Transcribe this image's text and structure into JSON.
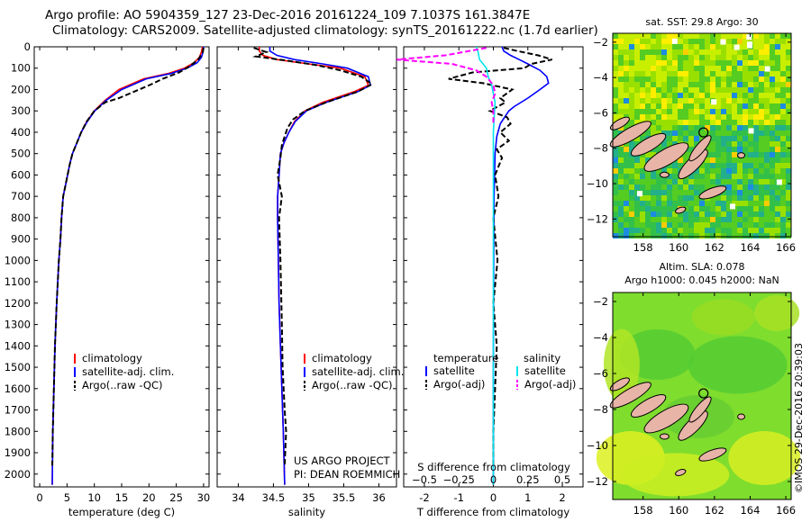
{
  "header": {
    "line1": "Argo profile: AO 5904359_127 23-Dec-2016 20161224_109 7.1037S 161.3847E",
    "line2": "Climatology: CARS2009. Satellite-adjusted climatology: synTS_20161222.nc (1.7d earlier)"
  },
  "credit": "©IMOS 29-Dec-2016 20:39:03",
  "colors": {
    "climatology": "#ff0000",
    "satellite": "#0000ff",
    "argo": "#000000",
    "salinity_satellite": "#00e5ee",
    "salinity_argo": "#ff00ff",
    "land": "#e8b4a8",
    "sst_bg": "#33cc33",
    "sla_bg": "#7fdd2e"
  },
  "chart_data": [
    {
      "type": "line",
      "id": "temperature",
      "xlabel": "temperature (deg C)",
      "xlim": [
        -1,
        31
      ],
      "ylim": [
        2060,
        0
      ],
      "xticks": [
        0,
        5,
        10,
        15,
        20,
        25,
        30
      ],
      "yticks": [
        0,
        100,
        200,
        300,
        400,
        500,
        600,
        700,
        800,
        900,
        1000,
        1100,
        1200,
        1300,
        1400,
        1500,
        1600,
        1700,
        1800,
        1900,
        2000
      ],
      "legend": [
        "climatology",
        "satellite-adj. clim.",
        "Argo(..raw -QC)"
      ],
      "series": [
        {
          "name": "climatology",
          "style": "solid",
          "x": [
            29.8,
            29.6,
            29.2,
            28.2,
            26.5,
            23.5,
            19.0,
            14.5,
            12.0,
            10.0,
            8.6,
            7.6,
            6.8,
            6.0,
            5.5,
            5.1,
            4.7,
            4.3,
            4.0,
            3.8,
            3.5,
            3.1,
            2.8,
            2.6,
            2.4,
            2.3
          ],
          "y": [
            0,
            25,
            50,
            75,
            100,
            125,
            150,
            200,
            250,
            300,
            350,
            400,
            450,
            500,
            550,
            600,
            650,
            700,
            800,
            900,
            1000,
            1200,
            1400,
            1600,
            1800,
            2050
          ]
        },
        {
          "name": "satellite-adj. clim.",
          "style": "solid",
          "x": [
            30.0,
            29.9,
            29.6,
            28.8,
            27.0,
            24.0,
            19.5,
            15.0,
            12.2,
            10.1,
            8.7,
            7.6,
            6.8,
            6.0,
            5.5,
            5.1,
            4.7,
            4.3,
            4.0,
            3.8,
            3.5,
            3.1,
            2.8,
            2.6,
            2.4,
            2.3
          ],
          "y": [
            0,
            25,
            50,
            75,
            100,
            125,
            150,
            200,
            250,
            300,
            350,
            400,
            450,
            500,
            550,
            600,
            650,
            700,
            800,
            900,
            1000,
            1200,
            1400,
            1600,
            1800,
            2050
          ]
        },
        {
          "name": "Argo(..raw -QC)",
          "style": "dashed",
          "x": [
            30.0,
            29.8,
            29.0,
            27.5,
            25.5,
            22.5,
            20.5,
            18.2,
            14.5,
            12.0,
            10.0,
            8.6,
            7.6,
            6.8,
            6.0,
            5.5,
            5.1,
            4.7,
            4.3,
            4.0,
            3.8,
            3.5,
            3.1,
            2.8,
            2.6,
            2.4,
            2.3
          ],
          "y": [
            5,
            30,
            60,
            90,
            120,
            150,
            175,
            200,
            240,
            260,
            300,
            350,
            400,
            450,
            500,
            550,
            600,
            650,
            700,
            800,
            900,
            1000,
            1200,
            1400,
            1600,
            1800,
            1960
          ]
        }
      ]
    },
    {
      "type": "line",
      "id": "salinity",
      "xlabel": "salinity",
      "xlim": [
        33.7,
        36.25
      ],
      "ylim": [
        2060,
        0
      ],
      "xticks": [
        34,
        34.5,
        35,
        35.5,
        36
      ],
      "yticks": [
        0,
        100,
        200,
        300,
        400,
        500,
        600,
        700,
        800,
        900,
        1000,
        1100,
        1200,
        1300,
        1400,
        1500,
        1600,
        1700,
        1800,
        1900,
        2000
      ],
      "legend": [
        "climatology",
        "satellite-adj. clim.",
        "Argo(..raw -QC)"
      ],
      "annotation_line1": "US ARGO PROJECT",
      "annotation_line2": "PI: DEAN ROEMMICH",
      "series": [
        {
          "name": "climatology",
          "style": "solid",
          "x": [
            34.3,
            34.3,
            34.35,
            34.55,
            35.0,
            35.45,
            35.8,
            35.85,
            35.65,
            35.2,
            34.95,
            34.8,
            34.72,
            34.65,
            34.6,
            34.58,
            34.56,
            34.56,
            34.57,
            34.58,
            34.6,
            34.62,
            34.64,
            34.66
          ],
          "y": [
            0,
            20,
            40,
            60,
            80,
            100,
            140,
            180,
            210,
            260,
            300,
            350,
            400,
            450,
            500,
            600,
            700,
            800,
            1000,
            1200,
            1400,
            1600,
            1800,
            2050
          ]
        },
        {
          "name": "satellite-adj. clim.",
          "style": "solid",
          "x": [
            34.45,
            34.45,
            34.55,
            34.8,
            35.2,
            35.55,
            35.85,
            35.88,
            35.7,
            35.25,
            34.97,
            34.81,
            34.72,
            34.65,
            34.6,
            34.58,
            34.56,
            34.56,
            34.57,
            34.58,
            34.6,
            34.62,
            34.64,
            34.66
          ],
          "y": [
            0,
            20,
            40,
            60,
            80,
            100,
            140,
            180,
            210,
            260,
            300,
            350,
            400,
            450,
            500,
            600,
            700,
            800,
            1000,
            1200,
            1400,
            1600,
            1800,
            2050
          ]
        },
        {
          "name": "Argo(..raw -QC)",
          "style": "dashed",
          "x": [
            34.22,
            34.4,
            34.25,
            34.7,
            35.1,
            35.45,
            35.75,
            35.9,
            35.7,
            35.25,
            34.95,
            34.78,
            34.7,
            34.66,
            34.62,
            34.6,
            34.56,
            34.62,
            34.58,
            34.6,
            34.62,
            34.63,
            34.66,
            34.68,
            34.66
          ],
          "y": [
            5,
            25,
            45,
            65,
            85,
            110,
            140,
            175,
            210,
            260,
            300,
            340,
            380,
            420,
            460,
            520,
            600,
            700,
            800,
            1000,
            1300,
            1500,
            1700,
            1800,
            1960
          ]
        }
      ]
    },
    {
      "type": "line",
      "id": "differences",
      "xlabel": "T difference from climatology",
      "x2label": "S difference from climatology",
      "xlim": [
        -2.6,
        2.6
      ],
      "ylim": [
        2060,
        0
      ],
      "xticks": [
        -2,
        -1,
        0,
        1,
        2
      ],
      "x2ticks": [
        -0.5,
        -0.25,
        0,
        0.25,
        0.5
      ],
      "x2tick_labels": [
        "−0.5",
        "−0.25",
        "0",
        "0.25",
        "0.5"
      ],
      "yticks": [
        0,
        100,
        200,
        300,
        400,
        500,
        600,
        700,
        800,
        900,
        1000,
        1100,
        1200,
        1300,
        1400,
        1500,
        1600,
        1700,
        1800,
        1900,
        2000
      ],
      "legend_titles": [
        "temperature",
        "salinity"
      ],
      "legend": [
        "satellite",
        "Argo(-adj)",
        "satellite",
        "Argo(-adj)"
      ],
      "series": [
        {
          "name": "temperature satellite",
          "style": "solid",
          "color": "#0000ff",
          "x": [
            0.25,
            0.3,
            0.5,
            0.75,
            1.0,
            1.35,
            1.55,
            1.6,
            1.35,
            1.0,
            0.6,
            0.45,
            0.2,
            0.1,
            0.05,
            0.02,
            0.01,
            0.0,
            0.0
          ],
          "y": [
            0,
            20,
            40,
            60,
            80,
            110,
            140,
            170,
            200,
            240,
            280,
            300,
            360,
            420,
            500,
            700,
            1000,
            1500,
            2050
          ]
        },
        {
          "name": "temperature Argo(-adj)",
          "style": "dashed",
          "color": "#000000",
          "x": [
            0.3,
            0.7,
            1.3,
            1.7,
            1.1,
            0.9,
            -0.6,
            -1.3,
            -0.3,
            0.55,
            0.2,
            0.35,
            -0.1,
            0.4,
            0.5,
            0.2,
            0.45,
            0.1,
            0.25,
            0.05,
            0.15,
            0.0,
            0.12,
            0.0,
            0.1,
            0.0,
            0.0
          ],
          "y": [
            5,
            20,
            40,
            60,
            80,
            100,
            120,
            150,
            170,
            200,
            240,
            260,
            300,
            330,
            360,
            400,
            440,
            480,
            520,
            600,
            700,
            800,
            1000,
            1200,
            1400,
            1800,
            1960
          ]
        },
        {
          "name": "salinity satellite",
          "style": "solid",
          "color": "#00e5ee",
          "x": [
            -0.5,
            -0.45,
            -0.4,
            -0.2,
            -0.15,
            -0.05,
            0.05,
            0.0,
            0.0,
            0.0
          ],
          "y": [
            0,
            20,
            60,
            100,
            140,
            180,
            260,
            400,
            1000,
            2050
          ]
        },
        {
          "name": "salinity Argo(-adj)",
          "style": "dashed",
          "color": "#ff00ff",
          "x": [
            -0.2,
            -1.4,
            -2.8,
            -1.2,
            -0.5,
            -0.2,
            0.0,
            0.05,
            -0.05,
            0.0,
            0.0
          ],
          "y": [
            5,
            40,
            60,
            80,
            110,
            140,
            180,
            220,
            260,
            300,
            360
          ]
        }
      ]
    },
    {
      "type": "heatmap",
      "id": "sst_map",
      "title": "sat. SST: 29.8 Argo: 30",
      "xlim": [
        156.3,
        166.3
      ],
      "ylim": [
        -13,
        -1.5
      ],
      "xticks": [
        158,
        160,
        162,
        164,
        166
      ],
      "yticks": [
        -2,
        -4,
        -6,
        -8,
        -10,
        -12
      ],
      "argo_position": {
        "lon": 161.3847,
        "lat": -7.1037
      }
    },
    {
      "type": "heatmap",
      "id": "sla_map",
      "title_line1": "Altim. SLA: 0.078",
      "title_line2": "Argo h1000: 0.045 h2000: NaN",
      "xlim": [
        156.3,
        166.3
      ],
      "ylim": [
        -13,
        -1.5
      ],
      "xticks": [
        158,
        160,
        162,
        164,
        166
      ],
      "yticks": [
        -2,
        -4,
        -6,
        -8,
        -10,
        -12
      ],
      "argo_position": {
        "lon": 161.3847,
        "lat": -7.1037
      }
    }
  ]
}
